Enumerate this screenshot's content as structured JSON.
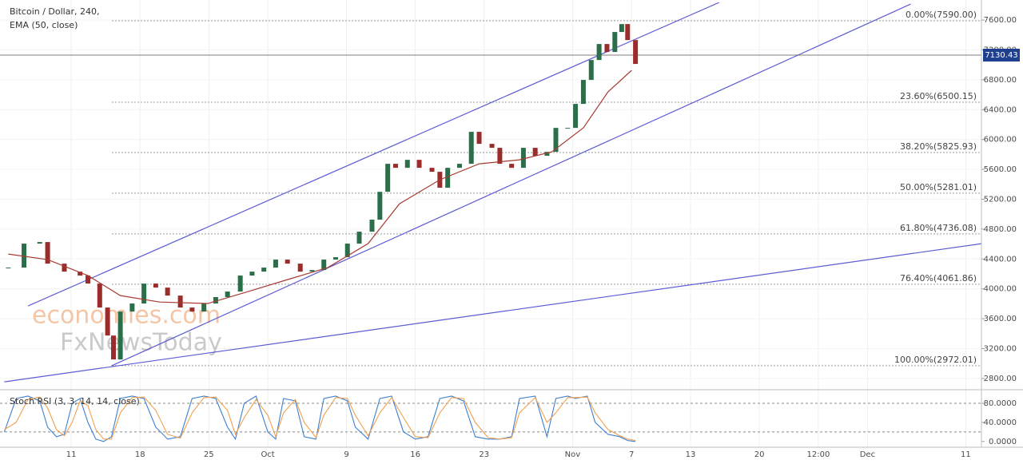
{
  "chart_data": [
    {
      "type": "candlestick",
      "title": "Bitcoin / Dollar, 240,",
      "indicator_label": "EMA (50, close)",
      "xlim": [
        4,
        104
      ],
      "ylim": [
        2660,
        7815
      ],
      "yticks": [
        {
          "value": 2800,
          "label": "2800.00"
        },
        {
          "value": 3200,
          "label": "3200.00"
        },
        {
          "value": 3600,
          "label": "3600.00"
        },
        {
          "value": 4000,
          "label": "4000.00"
        },
        {
          "value": 4400,
          "label": "4400.00"
        },
        {
          "value": 4800,
          "label": "4800.00"
        },
        {
          "value": 5200,
          "label": "5200.00"
        },
        {
          "value": 5600,
          "label": "5600.00"
        },
        {
          "value": 6000,
          "label": "6000.00"
        },
        {
          "value": 6400,
          "label": "6400.00"
        },
        {
          "value": 6800,
          "label": "6800.00"
        },
        {
          "value": 7200,
          "label": "7200.00"
        },
        {
          "value": 7600,
          "label": "7600.00"
        }
      ],
      "x": [
        4.6,
        6.2,
        7.8,
        8.6,
        10.3,
        11.9,
        12.7,
        13.9,
        14.7,
        15.3,
        16.0,
        17.2,
        18.4,
        19.6,
        20.8,
        22.1,
        23.3,
        24.5,
        25.7,
        26.9,
        28.2,
        29.4,
        30.6,
        31.8,
        33.0,
        34.3,
        35.5,
        36.7,
        37.9,
        39.1,
        40.3,
        41.6,
        42.4,
        43.2,
        44.0,
        45.2,
        46.4,
        47.7,
        48.5,
        49.3,
        50.5,
        51.7,
        52.5,
        53.8,
        54.6,
        55.8,
        57.0,
        58.2,
        59.4,
        60.3,
        61.5,
        62.3,
        63.1,
        63.9,
        64.7,
        65.5,
        66.3,
        67.0,
        67.6,
        68.4
      ],
      "values": [
        4285,
        4606,
        4627,
        4338,
        4231,
        4178,
        4071,
        3750,
        3375,
        3055,
        3696,
        3804,
        4071,
        4017,
        3910,
        3750,
        3696,
        3804,
        3890,
        3964,
        4178,
        4231,
        4285,
        4392,
        4338,
        4231,
        4252,
        4392,
        4424,
        4606,
        4766,
        4927,
        5300,
        5675,
        5621,
        5728,
        5621,
        5568,
        5354,
        5621,
        5675,
        6103,
        5942,
        5889,
        5675,
        5621,
        5889,
        5782,
        5835,
        6156,
        6156,
        6477,
        6798,
        7065,
        7279,
        7172,
        7440,
        7546,
        7332,
        7012
      ],
      "up_color": "#2b6e4a",
      "down_color": "#9b2c2c",
      "ema": {
        "color": "#a83a32",
        "x": [
          4.6,
          8.6,
          12.7,
          16.0,
          20.0,
          24.9,
          29.0,
          33.0,
          37.1,
          41.2,
          44.4,
          48.5,
          52.5,
          56.6,
          59.9,
          63.1,
          65.6,
          68.0
        ],
        "values": [
          4466,
          4392,
          4178,
          3910,
          3824,
          3804,
          3964,
          4124,
          4285,
          4606,
          5140,
          5461,
          5675,
          5728,
          5835,
          6156,
          6637,
          6926
        ]
      },
      "fib_levels": [
        {
          "label": "0.00%(7590.00)",
          "value": 7590
        },
        {
          "label": "23.60%(6500.15)",
          "value": 6500.15
        },
        {
          "label": "38.20%(5825.93)",
          "value": 5825.93
        },
        {
          "label": "50.00%(5281.01)",
          "value": 5281.01
        },
        {
          "label": "61.80%(4736.08)",
          "value": 4736.08
        },
        {
          "label": "76.40%(4061.86)",
          "value": 4061.86
        },
        {
          "label": "100.00%(2972.01)",
          "value": 2972.01
        }
      ],
      "fib_color": "#9a9a9a",
      "trend_lines": [
        {
          "x": [
            6.6,
            76.9
          ],
          "y": [
            3771,
            7835
          ]
        },
        {
          "x": [
            15.1,
            96.4
          ],
          "y": [
            2969,
            7814
          ]
        },
        {
          "x": [
            4.2,
            103.6
          ],
          "y": [
            2755,
            4605
          ]
        }
      ],
      "trend_color": "#5b5bd6",
      "last_price": 7130.43,
      "last_price_color": "#1f3f8f",
      "watermark": [
        "economies.com",
        "FxNewsToday"
      ],
      "grid": true
    },
    {
      "type": "line",
      "title": "Stoch RSI (3, 3, 14, 14, close)",
      "xlim": [
        4,
        104
      ],
      "ylim": [
        -12,
        105
      ],
      "yticks": [
        {
          "value": 80,
          "label": "80.0000"
        },
        {
          "value": 40,
          "label": "40.0000"
        },
        {
          "value": 0,
          "label": "0.0000"
        }
      ],
      "bands": [
        80,
        20
      ],
      "xticks": [
        {
          "value": 11,
          "label": "11"
        },
        {
          "value": 18,
          "label": "18"
        },
        {
          "value": 25,
          "label": "25"
        },
        {
          "value": 31,
          "label": "Oct"
        },
        {
          "value": 39,
          "label": "9"
        },
        {
          "value": 46,
          "label": "16"
        },
        {
          "value": 53,
          "label": "23"
        },
        {
          "value": 62,
          "label": "Nov"
        },
        {
          "value": 68,
          "label": "7"
        },
        {
          "value": 74,
          "label": "13"
        },
        {
          "value": 81,
          "label": "20"
        },
        {
          "value": 87,
          "label": "12:00"
        },
        {
          "value": 92,
          "label": "Dec"
        },
        {
          "value": 102,
          "label": "11"
        }
      ],
      "x": [
        4.2,
        5.4,
        6.6,
        7.8,
        8.6,
        9.5,
        10.3,
        11.1,
        11.9,
        12.7,
        13.5,
        14.3,
        15.1,
        16.0,
        17.2,
        18.4,
        19.6,
        20.8,
        22.1,
        23.3,
        24.5,
        25.7,
        26.9,
        27.7,
        28.6,
        29.8,
        31.0,
        31.8,
        32.6,
        33.8,
        34.7,
        35.9,
        36.7,
        37.9,
        39.1,
        39.9,
        41.2,
        42.4,
        43.6,
        44.8,
        46.0,
        47.3,
        48.5,
        49.7,
        50.9,
        52.1,
        53.4,
        54.6,
        55.8,
        56.6,
        58.2,
        59.4,
        60.3,
        61.5,
        62.3,
        63.5,
        64.3,
        65.6,
        66.8,
        67.6,
        68.4
      ],
      "series": [
        {
          "color": "#3d7fd0",
          "values": [
            20,
            90,
            95,
            85,
            30,
            10,
            15,
            80,
            90,
            40,
            5,
            0,
            10,
            90,
            95,
            90,
            30,
            5,
            10,
            90,
            95,
            90,
            30,
            5,
            80,
            95,
            20,
            5,
            90,
            85,
            10,
            5,
            90,
            95,
            85,
            30,
            5,
            90,
            95,
            20,
            5,
            10,
            90,
            95,
            85,
            10,
            5,
            5,
            10,
            90,
            95,
            10,
            90,
            95,
            90,
            95,
            40,
            15,
            10,
            2,
            0
          ]
        },
        {
          "color": "#f0a050",
          "values": [
            25,
            40,
            88,
            93,
            70,
            25,
            12,
            40,
            85,
            75,
            25,
            5,
            5,
            60,
            92,
            93,
            65,
            15,
            7,
            60,
            92,
            93,
            65,
            15,
            50,
            88,
            55,
            10,
            60,
            88,
            40,
            8,
            55,
            92,
            90,
            55,
            12,
            60,
            92,
            50,
            10,
            8,
            60,
            92,
            90,
            40,
            8,
            5,
            8,
            60,
            92,
            40,
            60,
            92,
            92,
            93,
            60,
            25,
            12,
            5,
            2
          ]
        }
      ]
    }
  ]
}
